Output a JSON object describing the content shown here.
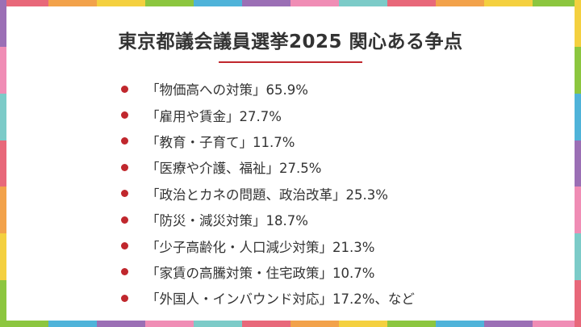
{
  "title": "東京都議会議員選挙2025 関心ある争点",
  "colors": {
    "accent": "#c0272d",
    "border_palette": [
      "#e8687a",
      "#f2a24b",
      "#f4d03f",
      "#8cc63f",
      "#4fb3d9",
      "#9b6fb5",
      "#f08db5",
      "#7ccbc8"
    ]
  },
  "items": [
    {
      "text": "「物価高への対策」65.9%"
    },
    {
      "text": "「雇用や賃金」27.7%"
    },
    {
      "text": "「教育・子育て」11.7%"
    },
    {
      "text": "「医療や介護、福祉」27.5%"
    },
    {
      "text": "「政治とカネの問題、政治改革」25.3%"
    },
    {
      "text": "「防災・減災対策」18.7%"
    },
    {
      "text": "「少子高齢化・人口減少対策」21.3%"
    },
    {
      "text": "「家賃の高騰対策・住宅政策」10.7%"
    },
    {
      "text": "「外国人・インバウンド対応」17.2%、など"
    }
  ]
}
